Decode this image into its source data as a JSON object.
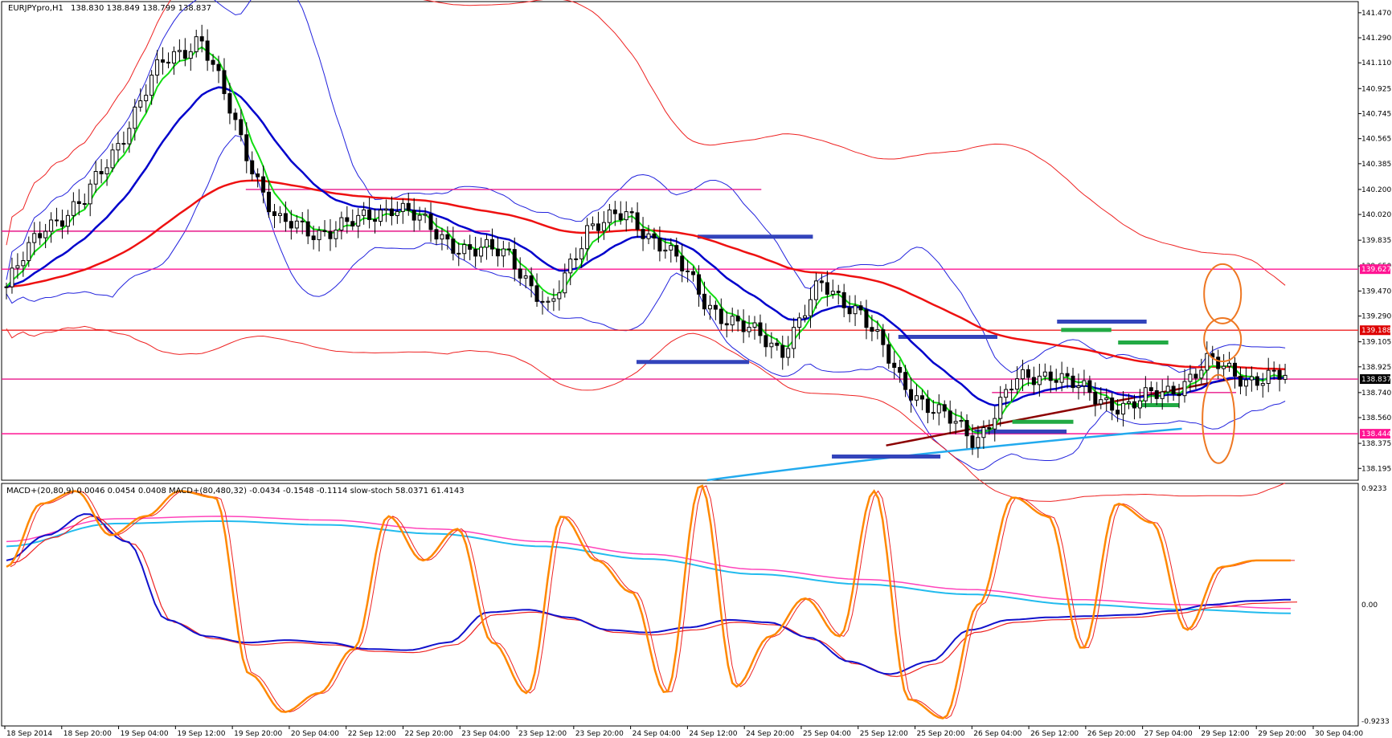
{
  "chart_data": {
    "type": "candlestick",
    "symbol_header": "EURJPYpro,H1",
    "ohlc_header": "138.830 138.849 138.799 138.837",
    "price_axis": {
      "ylim": [
        138.11,
        141.55
      ],
      "ticks": [
        "141.470",
        "141.290",
        "141.110",
        "140.925",
        "140.745",
        "140.565",
        "140.385",
        "140.200",
        "140.020",
        "139.835",
        "139.650",
        "139.470",
        "139.290",
        "139.105",
        "138.925",
        "138.740",
        "138.560",
        "138.375",
        "138.195"
      ]
    },
    "highlight_labels": [
      {
        "text": "139.627",
        "value": 139.627,
        "color": "#ff1493"
      },
      {
        "text": "139.188",
        "value": 139.188,
        "color": "#dd0000"
      },
      {
        "text": "138.837",
        "value": 138.837,
        "color": "#000000"
      },
      {
        "text": "138.444",
        "value": 138.444,
        "color": "#ff1493"
      }
    ],
    "time_axis_labels": [
      "18 Sep 2014",
      "18 Sep 20:00",
      "19 Sep 04:00",
      "19 Sep 12:00",
      "19 Sep 20:00",
      "20 Sep 04:00",
      "22 Sep 12:00",
      "22 Sep 20:00",
      "23 Sep 04:00",
      "23 Sep 12:00",
      "23 Sep 20:00",
      "24 Sep 04:00",
      "24 Sep 12:00",
      "24 Sep 20:00",
      "25 Sep 04:00",
      "25 Sep 12:00",
      "25 Sep 20:00",
      "26 Sep 04:00",
      "26 Sep 12:00",
      "26 Sep 20:00",
      "27 Sep 04:00",
      "29 Sep 12:00",
      "29 Sep 20:00",
      "30 Sep 04:00"
    ],
    "closes_key": [
      139.5,
      139.95,
      140.1,
      140.6,
      141.1,
      141.3,
      140.6,
      139.95,
      139.9,
      139.95,
      140.1,
      139.9,
      139.75,
      139.75,
      139.3,
      139.95,
      140.0,
      139.8,
      139.4,
      139.2,
      139.05,
      139.5,
      139.35,
      138.85,
      138.6,
      138.4,
      138.8,
      138.9,
      138.7,
      138.65,
      138.75,
      138.95,
      138.85,
      138.84
    ],
    "horizontal_levels": [
      {
        "value": 140.2,
        "color": "#e8178a",
        "span": [
          0.18,
          0.56
        ]
      },
      {
        "value": 139.9,
        "color": "#e8178a",
        "span": [
          0,
          0.36
        ]
      },
      {
        "value": 139.627,
        "color": "#ff1493",
        "span": [
          0,
          1
        ]
      },
      {
        "value": 139.188,
        "color": "#ee2222",
        "span": [
          0,
          1
        ]
      },
      {
        "value": 138.837,
        "color": "#e8178a",
        "span": [
          0,
          1
        ]
      },
      {
        "value": 138.444,
        "color": "#ff1493",
        "span": [
          0,
          1
        ]
      },
      {
        "value": 138.74,
        "color": "#e8178a",
        "span": [
          0.73,
          0.91
        ]
      }
    ],
    "blue_marks": [
      {
        "value": 139.86,
        "span": [
          0.513,
          0.598
        ]
      },
      {
        "value": 138.96,
        "span": [
          0.468,
          0.551
        ]
      },
      {
        "value": 139.14,
        "span": [
          0.661,
          0.734
        ]
      },
      {
        "value": 139.25,
        "span": [
          0.778,
          0.844
        ]
      },
      {
        "value": 138.46,
        "span": [
          0.717,
          0.785
        ]
      },
      {
        "value": 138.28,
        "span": [
          0.612,
          0.692
        ]
      }
    ],
    "green_marks": [
      {
        "value": 139.19,
        "span": [
          0.781,
          0.818
        ]
      },
      {
        "value": 139.1,
        "span": [
          0.823,
          0.86
        ]
      },
      {
        "value": 138.53,
        "span": [
          0.745,
          0.79
        ]
      },
      {
        "value": 138.65,
        "span": [
          0.833,
          0.868
        ]
      }
    ],
    "indicator": {
      "header": "MACD+(20,80,9) 0.0046 0.0454 0.0408   MACD+(80,480,32) -0.0434 -0.1548 -0.1114   slow-stoch 58.0371 61.4143",
      "ylim": [
        -0.96,
        0.96
      ],
      "ticks": [
        "0.9233",
        "0.00",
        "-0.9233"
      ],
      "stoch": [
        0.3,
        0.8,
        0.9,
        0.55,
        0.7,
        0.9,
        0.85,
        -0.55,
        -0.85,
        -0.7,
        -0.35,
        0.7,
        0.35,
        0.6,
        -0.3,
        -0.7,
        0.7,
        0.35,
        0.1,
        -0.7,
        0.95,
        -0.65,
        -0.25,
        0.05,
        -0.25,
        0.9,
        -0.75,
        -0.9,
        0.0,
        0.85,
        0.7,
        -0.35,
        0.8,
        0.65,
        -0.2,
        0.3,
        0.35,
        0.35
      ],
      "macd_fast": [
        0.35,
        0.55,
        0.72,
        0.5,
        -0.12,
        -0.25,
        -0.3,
        -0.28,
        -0.3,
        -0.35,
        -0.36,
        -0.3,
        -0.06,
        -0.04,
        -0.1,
        -0.2,
        -0.22,
        -0.18,
        -0.12,
        -0.14,
        -0.26,
        -0.45,
        -0.55,
        -0.45,
        -0.2,
        -0.12,
        -0.1,
        -0.09,
        -0.08,
        -0.05,
        0.0,
        0.03,
        0.04
      ],
      "macd_slow": [
        0.5,
        0.68,
        0.7,
        0.67,
        0.6,
        0.5,
        0.4,
        0.28,
        0.2,
        0.12,
        0.04,
        0.0,
        -0.03
      ]
    }
  }
}
